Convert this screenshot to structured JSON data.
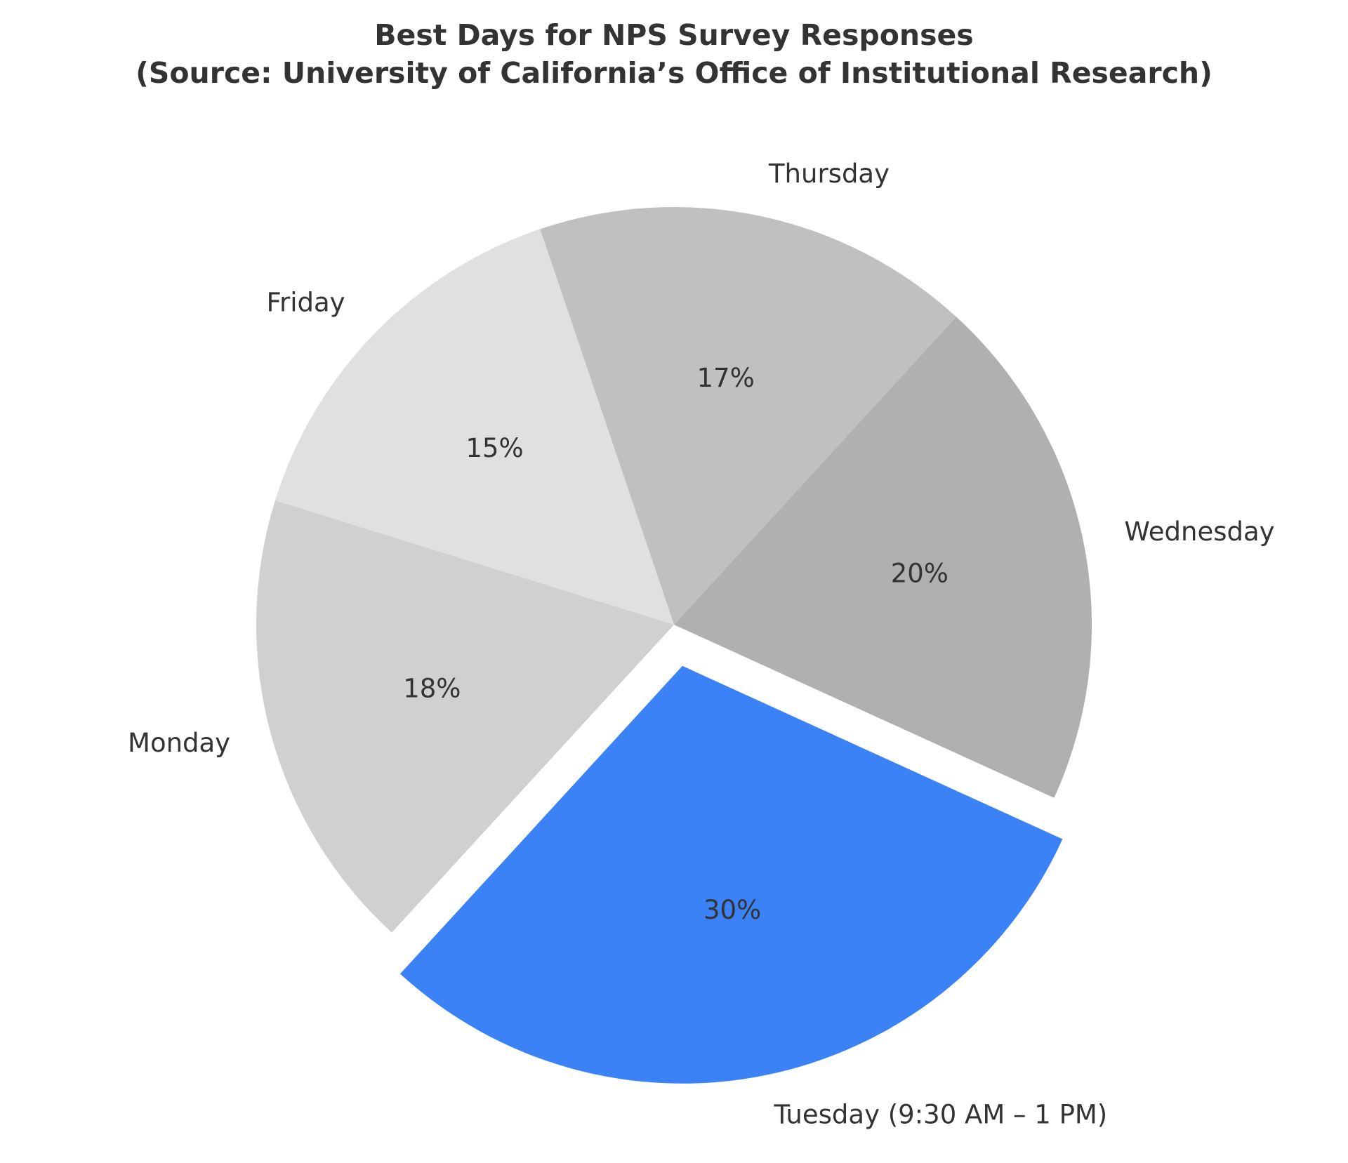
{
  "chart_data": {
    "type": "pie",
    "title": "Best Days for NPS Survey Responses",
    "subtitle": "(Source: University of California’s Office of Institutional Research)",
    "categories": [
      "Tuesday (9:30 AM – 1 PM)",
      "Wednesday",
      "Thursday",
      "Friday",
      "Monday"
    ],
    "values": [
      30,
      20,
      17,
      15,
      18
    ],
    "value_labels": [
      "30%",
      "20%",
      "17%",
      "15%",
      "18%"
    ],
    "colors": [
      "#3b82f6",
      "#b0b0b0",
      "#c0c0c0",
      "#e0e0e0",
      "#d0d0d0"
    ],
    "exploded": [
      "Tuesday (9:30 AM – 1 PM)"
    ],
    "direction": "counterclockwise",
    "legend": "none"
  }
}
